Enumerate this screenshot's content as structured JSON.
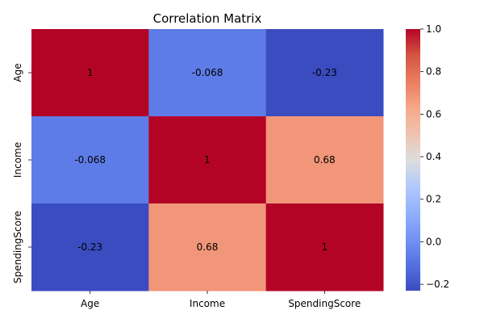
{
  "chart_data": {
    "type": "heatmap",
    "title": "Correlation Matrix",
    "x_labels": [
      "Age",
      "Income",
      "SpendingScore"
    ],
    "y_labels": [
      "Age",
      "Income",
      "SpendingScore"
    ],
    "values": [
      [
        1,
        -0.068,
        -0.23
      ],
      [
        -0.068,
        1,
        0.68
      ],
      [
        -0.23,
        0.68,
        1
      ]
    ],
    "annotations": [
      [
        "1",
        "-0.068",
        "-0.23"
      ],
      [
        "-0.068",
        "1",
        "0.68"
      ],
      [
        "-0.23",
        "0.68",
        "1"
      ]
    ],
    "colormap": "coolwarm",
    "colorbar": {
      "range": [
        -0.23,
        1.0
      ],
      "ticks": [
        -0.2,
        0.0,
        0.2,
        0.4,
        0.6,
        0.8,
        1.0
      ],
      "tick_labels": [
        "−0.2",
        "0.0",
        "0.2",
        "0.4",
        "0.6",
        "0.8",
        "1.0"
      ]
    },
    "annotation_colors": {
      "light": "#ffffff",
      "dark": "#000000"
    }
  }
}
